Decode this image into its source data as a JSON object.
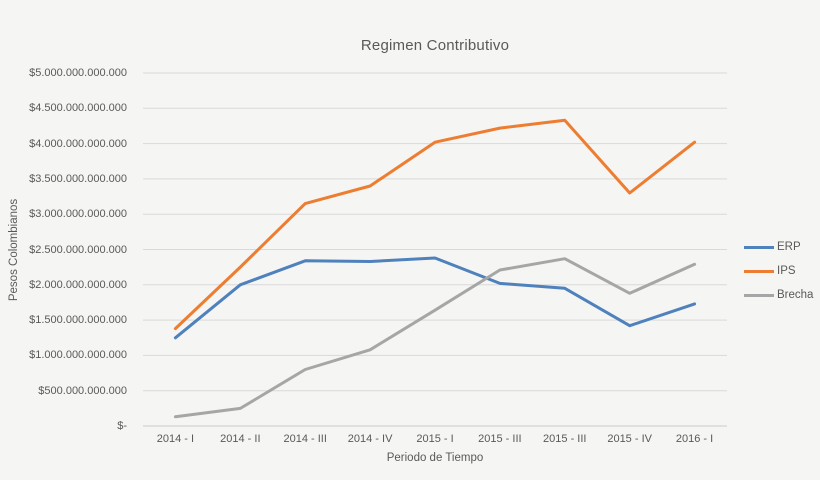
{
  "chart_data": {
    "type": "line",
    "title": "Regimen Contributivo",
    "xlabel": "Periodo de Tiempo",
    "ylabel": "Pesos Colombianos",
    "categories": [
      "2014 - I",
      "2014 - II",
      "2014 - III",
      "2014 - IV",
      "2015 - I",
      "2015 - III",
      "2015 - III",
      "2015 - IV",
      "2016 - I"
    ],
    "y_tick_labels": [
      "$-",
      "$500.000.000.000",
      "$1.000.000.000.000",
      "$1.500.000.000.000",
      "$2.000.000.000.000",
      "$2.500.000.000.000",
      "$3.000.000.000.000",
      "$3.500.000.000.000",
      "$4.000.000.000.000",
      "$4.500.000.000.000",
      "$5.000.000.000.000"
    ],
    "ylim": [
      0,
      5000000000000
    ],
    "grid": true,
    "legend_position": "right",
    "series": [
      {
        "name": "ERP",
        "color": "#4f81bd",
        "values": [
          1250000000000,
          2000000000000,
          2340000000000,
          2330000000000,
          2380000000000,
          2020000000000,
          1950000000000,
          1420000000000,
          1730000000000
        ]
      },
      {
        "name": "IPS",
        "color": "#ed7d31",
        "values": [
          1380000000000,
          2250000000000,
          3150000000000,
          3400000000000,
          4020000000000,
          4220000000000,
          4330000000000,
          3300000000000,
          4020000000000
        ]
      },
      {
        "name": "Brecha",
        "color": "#a6a6a6",
        "values": [
          130000000000,
          250000000000,
          800000000000,
          1080000000000,
          1640000000000,
          2210000000000,
          2370000000000,
          1880000000000,
          2290000000000
        ]
      }
    ]
  },
  "colors": {
    "background": "#f5f5f3",
    "gridline": "#d9d9d9",
    "axis_line": "#cccccc",
    "text": "#595959"
  }
}
